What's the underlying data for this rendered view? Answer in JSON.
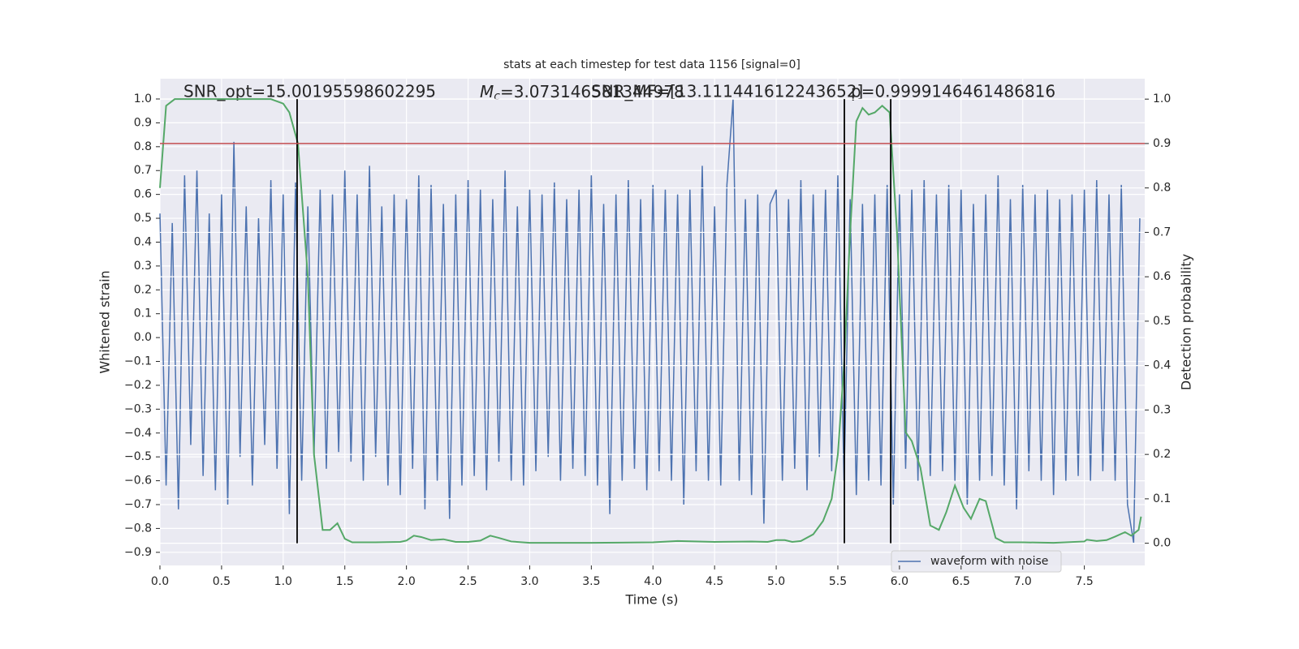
{
  "chart_data": {
    "type": "line",
    "title": "stats at each timestep for test data 1156 [signal=0]",
    "xlabel": "Time (s)",
    "ylabel": "Whitened strain",
    "y2label": "Detection probability",
    "annotations": [
      {
        "text": "SNR_opt=15.00195598602295"
      },
      {
        "symbol": "M",
        "subscript": "c",
        "text": "=3.073146581344978"
      },
      {
        "text": "SNR_MF=[13.111441612243652]"
      },
      {
        "text": "p=0.9999146461486816"
      }
    ],
    "xlim": [
      0,
      7.99
    ],
    "ylim": [
      -0.955,
      1.085
    ],
    "y2lim": [
      -0.05,
      1.046
    ],
    "xticks": [
      {
        "value": 0,
        "label": "0.0"
      },
      0.5,
      {
        "value": 1,
        "label": "1.0"
      },
      1.5,
      {
        "value": 2,
        "label": "2.0"
      },
      2.5,
      {
        "value": 3,
        "label": "3.0"
      },
      3.5,
      {
        "value": 4,
        "label": "4.0"
      },
      4.5,
      {
        "value": 5,
        "label": "5.0"
      },
      5.5,
      {
        "value": 6,
        "label": "6.0"
      },
      6.5,
      {
        "value": 7,
        "label": "7.0"
      },
      7.5
    ],
    "yticks": [
      {
        "value": 1,
        "label": "1.0"
      },
      0.9,
      0.8,
      0.7,
      0.6,
      0.5,
      0.4,
      0.3,
      0.2,
      0.1,
      {
        "value": 0,
        "label": "0.0"
      },
      {
        "value": -0.1,
        "label": "−0.1"
      },
      {
        "value": -0.2,
        "label": "−0.2"
      },
      {
        "value": -0.3,
        "label": "−0.3"
      },
      {
        "value": -0.4,
        "label": "−0.4"
      },
      {
        "value": -0.5,
        "label": "−0.5"
      },
      {
        "value": -0.6,
        "label": "−0.6"
      },
      {
        "value": -0.7,
        "label": "−0.7"
      },
      {
        "value": -0.8,
        "label": "−0.8"
      },
      {
        "value": -0.9,
        "label": "−0.9"
      }
    ],
    "y2ticks": [
      {
        "value": 0,
        "label": "0.0"
      },
      0.1,
      0.2,
      0.3,
      0.4,
      0.5,
      0.6,
      0.7,
      0.8,
      0.9,
      {
        "value": 1,
        "label": "1.0"
      }
    ],
    "grid": true,
    "background": "#eaeaf2",
    "legend": "lower right",
    "series": [
      {
        "name": "waveform with noise",
        "color": "#4c72b0",
        "x": [
          0,
          0.05,
          0.1,
          0.15,
          0.2,
          0.25,
          0.3,
          0.35,
          0.4,
          0.45,
          0.5,
          0.55,
          0.6,
          0.65,
          0.7,
          0.75,
          0.8,
          0.85,
          0.9,
          0.95,
          1,
          1.05,
          1.1,
          1.15,
          1.2,
          1.25,
          1.3,
          1.35,
          1.4,
          1.45,
          1.5,
          1.55,
          1.6,
          1.65,
          1.7,
          1.75,
          1.8,
          1.85,
          1.9,
          1.95,
          2,
          2.05,
          2.1,
          2.15,
          2.2,
          2.25,
          2.3,
          2.35,
          2.4,
          2.45,
          2.5,
          2.55,
          2.6,
          2.65,
          2.7,
          2.75,
          2.8,
          2.85,
          2.9,
          2.95,
          3,
          3.05,
          3.1,
          3.15,
          3.2,
          3.25,
          3.3,
          3.35,
          3.4,
          3.45,
          3.5,
          3.55,
          3.6,
          3.65,
          3.7,
          3.75,
          3.8,
          3.85,
          3.9,
          3.95,
          4,
          4.05,
          4.1,
          4.15,
          4.2,
          4.25,
          4.3,
          4.35,
          4.4,
          4.45,
          4.5,
          4.55,
          4.6,
          4.65,
          4.7,
          4.75,
          4.8,
          4.85,
          4.9,
          4.95,
          5,
          5.05,
          5.1,
          5.15,
          5.2,
          5.25,
          5.3,
          5.35,
          5.4,
          5.45,
          5.5,
          5.55,
          5.6,
          5.65,
          5.7,
          5.75,
          5.8,
          5.85,
          5.9,
          5.95,
          6,
          6.05,
          6.1,
          6.15,
          6.2,
          6.25,
          6.3,
          6.35,
          6.4,
          6.45,
          6.5,
          6.55,
          6.6,
          6.65,
          6.7,
          6.75,
          6.8,
          6.85,
          6.9,
          6.95,
          7,
          7.05,
          7.1,
          7.15,
          7.2,
          7.25,
          7.3,
          7.35,
          7.4,
          7.45,
          7.5,
          7.55,
          7.6,
          7.65,
          7.7,
          7.75,
          7.8,
          7.85,
          7.9,
          7.95
        ],
        "values": [
          0.52,
          -0.62,
          0.48,
          -0.72,
          0.68,
          -0.45,
          0.7,
          -0.58,
          0.52,
          -0.64,
          0.6,
          -0.7,
          0.82,
          -0.5,
          0.55,
          -0.62,
          0.5,
          -0.45,
          0.66,
          -0.55,
          0.6,
          -0.74,
          0.65,
          -0.6,
          0.55,
          -0.5,
          0.62,
          -0.55,
          0.6,
          -0.48,
          0.7,
          -0.52,
          0.6,
          -0.6,
          0.72,
          -0.5,
          0.55,
          -0.62,
          0.6,
          -0.66,
          0.58,
          -0.55,
          0.68,
          -0.72,
          0.64,
          -0.6,
          0.56,
          -0.76,
          0.6,
          -0.62,
          0.66,
          -0.58,
          0.62,
          -0.64,
          0.58,
          -0.52,
          0.7,
          -0.6,
          0.55,
          -0.62,
          0.62,
          -0.56,
          0.6,
          -0.5,
          0.65,
          -0.6,
          0.58,
          -0.55,
          0.62,
          -0.58,
          0.68,
          -0.62,
          0.56,
          -0.74,
          0.6,
          -0.6,
          0.66,
          -0.55,
          0.58,
          -0.64,
          0.64,
          -0.56,
          0.62,
          -0.6,
          0.6,
          -0.7,
          0.62,
          -0.56,
          0.72,
          -0.6,
          0.55,
          -0.62,
          0.64,
          1.0,
          -0.6,
          0.58,
          -0.66,
          0.6,
          -0.78,
          0.56,
          0.62,
          -0.6,
          0.58,
          -0.55,
          0.66,
          -0.64,
          0.6,
          -0.5,
          0.62,
          -0.56,
          0.68,
          -0.6,
          0.58,
          -0.66,
          0.56,
          -0.6,
          0.6,
          -0.62,
          0.64,
          -0.7,
          0.6,
          -0.55,
          0.62,
          -0.6,
          0.66,
          -0.58,
          0.6,
          -0.56,
          0.64,
          -0.6,
          0.62,
          -0.7,
          0.56,
          -0.6,
          0.6,
          -0.58,
          0.68,
          -0.62,
          0.58,
          -0.72,
          0.64,
          -0.56,
          0.6,
          -0.6,
          0.62,
          -0.66,
          0.58,
          -0.6,
          0.6,
          -0.58,
          0.62,
          -0.6,
          0.66,
          -0.56,
          0.6,
          -0.6,
          0.64,
          -0.7,
          -0.86,
          0.5
        ]
      },
      {
        "color": "#55a868",
        "axis": "y2",
        "x": [
          0,
          0.05,
          0.12,
          0.3,
          0.6,
          0.9,
          1,
          1.05,
          1.12,
          1.2,
          1.25,
          1.32,
          1.38,
          1.44,
          1.5,
          1.56,
          1.75,
          1.95,
          2,
          2.06,
          2.12,
          2.2,
          2.3,
          2.4,
          2.5,
          2.6,
          2.68,
          2.75,
          2.85,
          3,
          3.5,
          4,
          4.2,
          4.5,
          4.8,
          4.93,
          5,
          5.07,
          5.13,
          5.2,
          5.3,
          5.38,
          5.45,
          5.5,
          5.55,
          5.6,
          5.65,
          5.7,
          5.75,
          5.8,
          5.86,
          5.92,
          5.98,
          6.05,
          6.1,
          6.17,
          6.25,
          6.32,
          6.38,
          6.45,
          6.52,
          6.58,
          6.65,
          6.7,
          6.78,
          6.85,
          7,
          7.25,
          7.5,
          7.52,
          7.6,
          7.68,
          7.75,
          7.83,
          7.88,
          7.94,
          7.96
        ],
        "values": [
          0.8,
          0.985,
          1,
          1,
          1,
          1,
          0.99,
          0.97,
          0.9,
          0.6,
          0.2,
          0.03,
          0.03,
          0.045,
          0.01,
          0.002,
          0.002,
          0.003,
          0.006,
          0.017,
          0.014,
          0.007,
          0.009,
          0.003,
          0.003,
          0.006,
          0.017,
          0.012,
          0.004,
          0.001,
          0.001,
          0.002,
          0.005,
          0.003,
          0.004,
          0.003,
          0.007,
          0.007,
          0.003,
          0.005,
          0.02,
          0.05,
          0.1,
          0.2,
          0.4,
          0.7,
          0.95,
          0.98,
          0.965,
          0.97,
          0.985,
          0.97,
          0.7,
          0.25,
          0.23,
          0.17,
          0.04,
          0.03,
          0.07,
          0.13,
          0.08,
          0.055,
          0.1,
          0.095,
          0.012,
          0.002,
          0.002,
          0.001,
          0.004,
          0.008,
          0.005,
          0.007,
          0.015,
          0.025,
          0.017,
          0.03,
          0.06
        ]
      }
    ],
    "hlines": [
      {
        "value": 0.9,
        "axis": "y2",
        "color": "#c44e52"
      }
    ],
    "vlines": [
      {
        "x": 1.113,
        "color": "#000000"
      },
      {
        "x": 5.553,
        "color": "#000000"
      },
      {
        "x": 5.929,
        "color": "#000000"
      }
    ]
  }
}
